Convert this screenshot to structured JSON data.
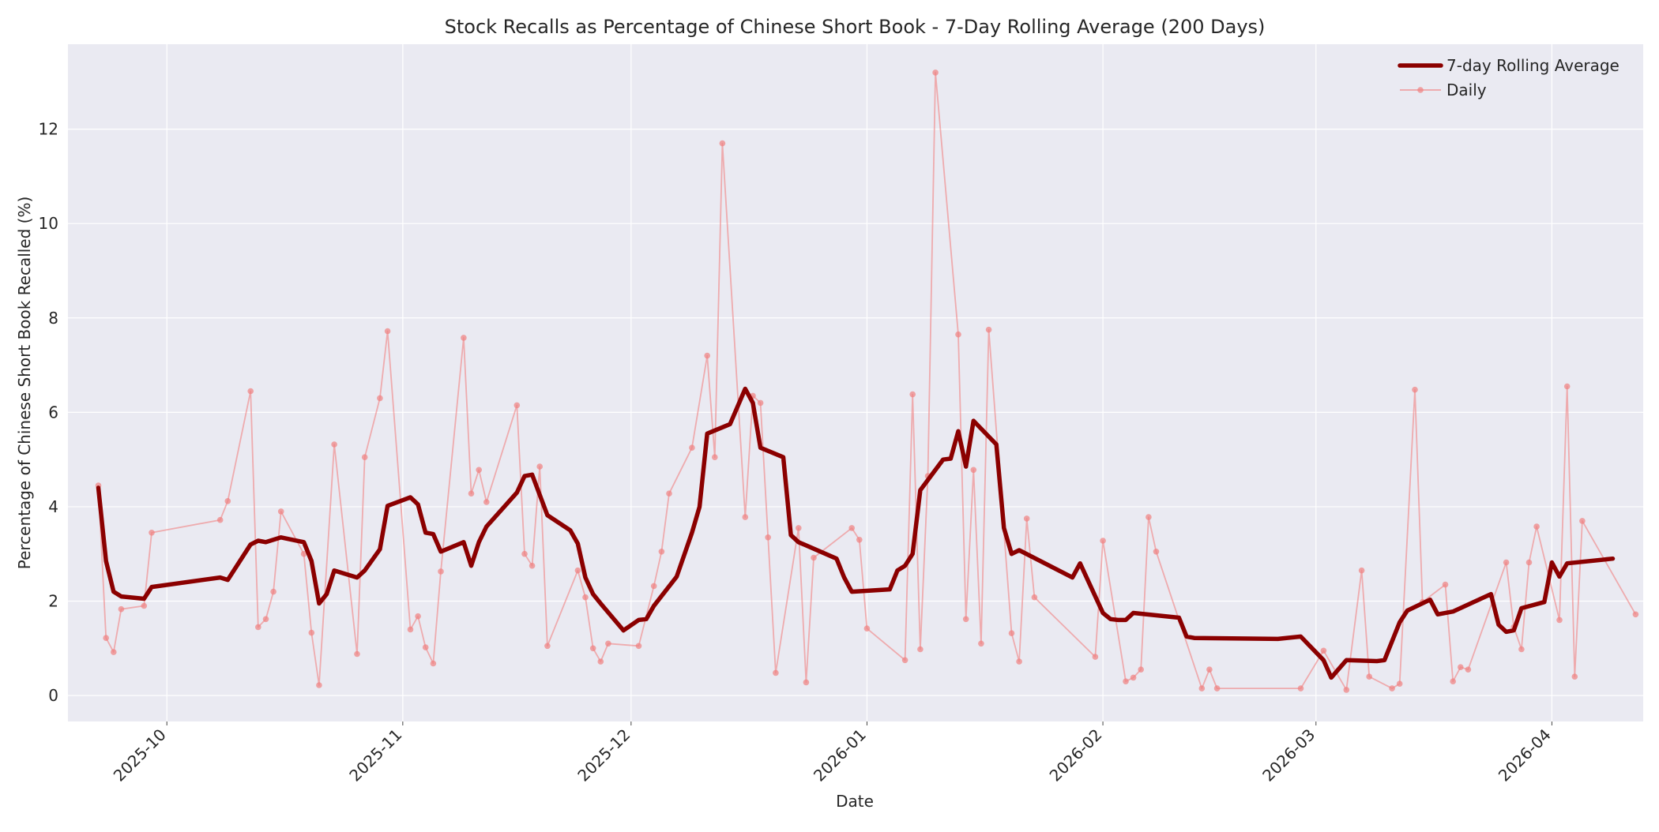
{
  "chart_data": {
    "type": "line",
    "title": "Stock Recalls as Percentage of Chinese Short Book - 7-Day Rolling Average (200 Days)",
    "xlabel": "Date",
    "ylabel": "Percentage of Chinese Short Book Recalled (%)",
    "x_range": [
      "2025-09-18",
      "2026-04-13"
    ],
    "ylim": [
      -0.55,
      13.8
    ],
    "x_ticks": [
      {
        "date": "2025-10-01",
        "label": "2025-10"
      },
      {
        "date": "2025-11-01",
        "label": "2025-11"
      },
      {
        "date": "2025-12-01",
        "label": "2025-12"
      },
      {
        "date": "2026-01-01",
        "label": "2026-01"
      },
      {
        "date": "2026-02-01",
        "label": "2026-02"
      },
      {
        "date": "2026-03-01",
        "label": "2026-03"
      },
      {
        "date": "2026-04-01",
        "label": "2026-04"
      }
    ],
    "y_ticks": [
      0,
      2,
      4,
      6,
      8,
      10,
      12
    ],
    "grid": true,
    "legend_position": "top-right",
    "colors": {
      "rolling": "#8b0000",
      "daily": "#f08080",
      "plot_bg": "#eaeaf2",
      "grid": "#ffffff"
    },
    "series": [
      {
        "name": "7-day Rolling Average",
        "style": "thick-line",
        "points": [
          [
            "2025-09-22",
            4.4
          ],
          [
            "2025-09-23",
            2.85
          ],
          [
            "2025-09-24",
            2.2
          ],
          [
            "2025-09-25",
            2.1
          ],
          [
            "2025-09-28",
            2.05
          ],
          [
            "2025-09-29",
            2.3
          ],
          [
            "2025-10-08",
            2.5
          ],
          [
            "2025-10-09",
            2.45
          ],
          [
            "2025-10-12",
            3.2
          ],
          [
            "2025-10-13",
            3.28
          ],
          [
            "2025-10-14",
            3.25
          ],
          [
            "2025-10-16",
            3.35
          ],
          [
            "2025-10-19",
            3.25
          ],
          [
            "2025-10-20",
            2.85
          ],
          [
            "2025-10-21",
            1.95
          ],
          [
            "2025-10-22",
            2.15
          ],
          [
            "2025-10-23",
            2.65
          ],
          [
            "2025-10-26",
            2.5
          ],
          [
            "2025-10-27",
            2.65
          ],
          [
            "2025-10-29",
            3.1
          ],
          [
            "2025-10-30",
            4.02
          ],
          [
            "2025-11-02",
            4.2
          ],
          [
            "2025-11-03",
            4.05
          ],
          [
            "2025-11-04",
            3.45
          ],
          [
            "2025-11-05",
            3.42
          ],
          [
            "2025-11-06",
            3.05
          ],
          [
            "2025-11-09",
            3.25
          ],
          [
            "2025-11-10",
            2.75
          ],
          [
            "2025-11-11",
            3.25
          ],
          [
            "2025-11-12",
            3.58
          ],
          [
            "2025-11-16",
            4.3
          ],
          [
            "2025-11-17",
            4.65
          ],
          [
            "2025-11-18",
            4.68
          ],
          [
            "2025-11-20",
            3.82
          ],
          [
            "2025-11-23",
            3.5
          ],
          [
            "2025-11-24",
            3.22
          ],
          [
            "2025-11-25",
            2.5
          ],
          [
            "2025-11-26",
            2.15
          ],
          [
            "2025-11-27",
            1.95
          ],
          [
            "2025-11-30",
            1.38
          ],
          [
            "2025-12-02",
            1.6
          ],
          [
            "2025-12-03",
            1.62
          ],
          [
            "2025-12-04",
            1.9
          ],
          [
            "2025-12-07",
            2.52
          ],
          [
            "2025-12-09",
            3.45
          ],
          [
            "2025-12-10",
            4.0
          ],
          [
            "2025-12-11",
            5.55
          ],
          [
            "2025-12-14",
            5.75
          ],
          [
            "2025-12-16",
            6.5
          ],
          [
            "2025-12-17",
            6.2
          ],
          [
            "2025-12-18",
            5.25
          ],
          [
            "2025-12-21",
            5.05
          ],
          [
            "2025-12-22",
            3.4
          ],
          [
            "2025-12-23",
            3.25
          ],
          [
            "2025-12-28",
            2.9
          ],
          [
            "2025-12-29",
            2.5
          ],
          [
            "2025-12-30",
            2.2
          ],
          [
            "2026-01-04",
            2.25
          ],
          [
            "2026-01-05",
            2.65
          ],
          [
            "2026-01-06",
            2.75
          ],
          [
            "2026-01-07",
            3.0
          ],
          [
            "2026-01-08",
            4.35
          ],
          [
            "2026-01-11",
            5.0
          ],
          [
            "2026-01-12",
            5.02
          ],
          [
            "2026-01-13",
            5.6
          ],
          [
            "2026-01-14",
            4.85
          ],
          [
            "2026-01-15",
            5.82
          ],
          [
            "2026-01-18",
            5.32
          ],
          [
            "2026-01-19",
            3.55
          ],
          [
            "2026-01-20",
            3.0
          ],
          [
            "2026-01-21",
            3.08
          ],
          [
            "2026-01-28",
            2.5
          ],
          [
            "2026-01-29",
            2.8
          ],
          [
            "2026-02-01",
            1.75
          ],
          [
            "2026-02-02",
            1.62
          ],
          [
            "2026-02-03",
            1.6
          ],
          [
            "2026-02-04",
            1.6
          ],
          [
            "2026-02-05",
            1.75
          ],
          [
            "2026-02-11",
            1.65
          ],
          [
            "2026-02-12",
            1.25
          ],
          [
            "2026-02-13",
            1.22
          ],
          [
            "2026-02-24",
            1.2
          ],
          [
            "2026-02-27",
            1.25
          ],
          [
            "2026-03-02",
            0.75
          ],
          [
            "2026-03-03",
            0.38
          ],
          [
            "2026-03-05",
            0.75
          ],
          [
            "2026-03-09",
            0.73
          ],
          [
            "2026-03-10",
            0.75
          ],
          [
            "2026-03-12",
            1.55
          ],
          [
            "2026-03-13",
            1.8
          ],
          [
            "2026-03-16",
            2.03
          ],
          [
            "2026-03-17",
            1.72
          ],
          [
            "2026-03-19",
            1.78
          ],
          [
            "2026-03-24",
            2.15
          ],
          [
            "2026-03-25",
            1.5
          ],
          [
            "2026-03-26",
            1.35
          ],
          [
            "2026-03-27",
            1.38
          ],
          [
            "2026-03-28",
            1.85
          ],
          [
            "2026-03-31",
            1.98
          ],
          [
            "2026-04-01",
            2.82
          ],
          [
            "2026-04-02",
            2.52
          ],
          [
            "2026-04-03",
            2.8
          ],
          [
            "2026-04-09",
            2.9
          ]
        ]
      },
      {
        "name": "Daily",
        "style": "thin-line-markers",
        "points": [
          [
            "2025-09-22",
            4.45
          ],
          [
            "2025-09-23",
            1.22
          ],
          [
            "2025-09-24",
            0.92
          ],
          [
            "2025-09-25",
            1.83
          ],
          [
            "2025-09-28",
            1.9
          ],
          [
            "2025-09-29",
            3.45
          ],
          [
            "2025-10-08",
            3.72
          ],
          [
            "2025-10-09",
            4.12
          ],
          [
            "2025-10-12",
            6.45
          ],
          [
            "2025-10-13",
            1.45
          ],
          [
            "2025-10-14",
            1.62
          ],
          [
            "2025-10-15",
            2.2
          ],
          [
            "2025-10-16",
            3.9
          ],
          [
            "2025-10-19",
            3.0
          ],
          [
            "2025-10-20",
            1.33
          ],
          [
            "2025-10-21",
            0.22
          ],
          [
            "2025-10-23",
            5.32
          ],
          [
            "2025-10-26",
            0.88
          ],
          [
            "2025-10-27",
            5.05
          ],
          [
            "2025-10-29",
            6.3
          ],
          [
            "2025-10-30",
            7.72
          ],
          [
            "2025-11-02",
            1.4
          ],
          [
            "2025-11-03",
            1.68
          ],
          [
            "2025-11-04",
            1.02
          ],
          [
            "2025-11-05",
            0.68
          ],
          [
            "2025-11-06",
            2.63
          ],
          [
            "2025-11-09",
            7.58
          ],
          [
            "2025-11-10",
            4.28
          ],
          [
            "2025-11-11",
            4.78
          ],
          [
            "2025-11-12",
            4.1
          ],
          [
            "2025-11-16",
            6.15
          ],
          [
            "2025-11-17",
            3.0
          ],
          [
            "2025-11-18",
            2.75
          ],
          [
            "2025-11-19",
            4.85
          ],
          [
            "2025-11-20",
            1.05
          ],
          [
            "2025-11-24",
            2.65
          ],
          [
            "2025-11-25",
            2.08
          ],
          [
            "2025-11-26",
            1.0
          ],
          [
            "2025-11-27",
            0.72
          ],
          [
            "2025-11-28",
            1.1
          ],
          [
            "2025-12-02",
            1.05
          ],
          [
            "2025-12-04",
            2.32
          ],
          [
            "2025-12-05",
            3.05
          ],
          [
            "2025-12-06",
            4.28
          ],
          [
            "2025-12-09",
            5.25
          ],
          [
            "2025-12-11",
            7.2
          ],
          [
            "2025-12-12",
            5.05
          ],
          [
            "2025-12-13",
            11.7
          ],
          [
            "2025-12-16",
            3.78
          ],
          [
            "2025-12-17",
            6.35
          ],
          [
            "2025-12-18",
            6.2
          ],
          [
            "2025-12-19",
            3.35
          ],
          [
            "2025-12-20",
            0.48
          ],
          [
            "2025-12-23",
            3.55
          ],
          [
            "2025-12-24",
            0.28
          ],
          [
            "2025-12-25",
            2.92
          ],
          [
            "2025-12-30",
            3.55
          ],
          [
            "2025-12-31",
            3.3
          ],
          [
            "2026-01-01",
            1.42
          ],
          [
            "2026-01-06",
            0.75
          ],
          [
            "2026-01-07",
            6.38
          ],
          [
            "2026-01-08",
            0.98
          ],
          [
            "2026-01-09",
            4.65
          ],
          [
            "2026-01-10",
            13.2
          ],
          [
            "2026-01-13",
            7.65
          ],
          [
            "2026-01-14",
            1.62
          ],
          [
            "2026-01-15",
            4.78
          ],
          [
            "2026-01-16",
            1.1
          ],
          [
            "2026-01-17",
            7.75
          ],
          [
            "2026-01-20",
            1.32
          ],
          [
            "2026-01-21",
            0.72
          ],
          [
            "2026-01-22",
            3.75
          ],
          [
            "2026-01-23",
            2.08
          ],
          [
            "2026-01-31",
            0.82
          ],
          [
            "2026-02-01",
            3.28
          ],
          [
            "2026-02-04",
            0.3
          ],
          [
            "2026-02-05",
            0.38
          ],
          [
            "2026-02-06",
            0.55
          ],
          [
            "2026-02-07",
            3.78
          ],
          [
            "2026-02-08",
            3.05
          ],
          [
            "2026-02-14",
            0.15
          ],
          [
            "2026-02-15",
            0.55
          ],
          [
            "2026-02-16",
            0.15
          ],
          [
            "2026-02-27",
            0.15
          ],
          [
            "2026-03-02",
            0.95
          ],
          [
            "2026-03-05",
            0.12
          ],
          [
            "2026-03-07",
            2.65
          ],
          [
            "2026-03-08",
            0.4
          ],
          [
            "2026-03-11",
            0.15
          ],
          [
            "2026-03-12",
            0.25
          ],
          [
            "2026-03-14",
            6.48
          ],
          [
            "2026-03-15",
            1.98
          ],
          [
            "2026-03-18",
            2.35
          ],
          [
            "2026-03-19",
            0.3
          ],
          [
            "2026-03-20",
            0.6
          ],
          [
            "2026-03-21",
            0.55
          ],
          [
            "2026-03-26",
            2.82
          ],
          [
            "2026-03-27",
            1.45
          ],
          [
            "2026-03-28",
            0.98
          ],
          [
            "2026-03-29",
            2.82
          ],
          [
            "2026-03-30",
            3.58
          ],
          [
            "2026-04-02",
            1.6
          ],
          [
            "2026-04-03",
            6.55
          ],
          [
            "2026-04-04",
            0.4
          ],
          [
            "2026-04-05",
            3.7
          ],
          [
            "2026-04-12",
            1.72
          ]
        ]
      }
    ]
  }
}
